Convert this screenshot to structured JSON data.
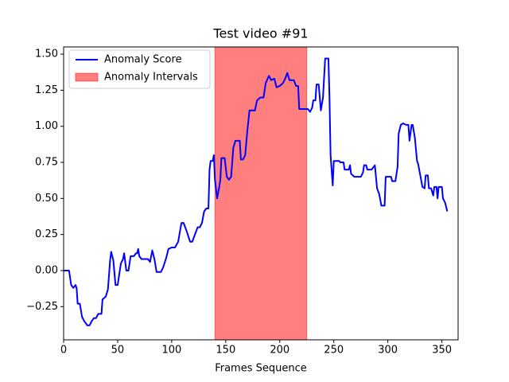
{
  "chart_data": {
    "type": "line",
    "title": "Test video #91",
    "x_label": "Frames Sequence",
    "x": [
      0,
      5,
      7,
      9,
      11,
      12,
      13,
      15,
      17,
      19,
      20,
      22,
      24,
      26,
      28,
      30,
      32,
      35,
      36,
      39,
      41,
      43,
      44,
      46,
      48,
      50,
      52,
      53,
      55,
      56,
      58,
      60,
      62,
      65,
      67,
      68,
      69,
      70,
      72,
      75,
      78,
      80,
      82,
      84,
      86,
      90,
      92,
      95,
      97,
      100,
      103,
      106,
      109,
      111,
      114,
      117,
      119,
      122,
      124,
      126,
      128,
      130,
      132,
      134,
      135,
      136,
      138,
      139,
      140,
      142,
      144,
      145,
      146,
      149,
      151,
      153,
      155,
      157,
      159,
      163,
      164,
      166,
      168,
      170,
      172,
      177,
      179,
      182,
      185,
      187,
      190,
      192,
      195,
      197,
      200,
      203,
      205,
      207,
      209,
      213,
      215,
      217,
      218,
      226,
      228,
      230,
      231,
      233,
      234,
      236,
      238,
      240,
      242,
      245,
      246,
      247,
      249,
      250,
      255,
      256,
      259,
      260,
      264,
      265,
      266,
      269,
      275,
      277,
      278,
      280,
      281,
      285,
      288,
      290,
      292,
      294,
      297,
      298,
      303,
      304,
      307,
      309,
      310,
      312,
      314,
      317,
      319,
      320,
      322,
      323,
      325,
      327,
      328,
      330,
      332,
      334,
      335,
      337,
      338,
      340,
      342,
      343,
      345,
      346,
      347,
      350,
      351,
      353,
      355
    ],
    "series": [
      {
        "name": "Anomaly Score",
        "color": "#0000ff",
        "values": [
          0,
          0,
          -0.1,
          -0.12,
          -0.1,
          -0.12,
          -0.23,
          -0.23,
          -0.32,
          -0.35,
          -0.36,
          -0.38,
          -0.38,
          -0.35,
          -0.33,
          -0.33,
          -0.3,
          -0.3,
          -0.2,
          -0.18,
          -0.13,
          0.07,
          0.13,
          0.07,
          -0.1,
          -0.1,
          0,
          0.05,
          0.08,
          0.12,
          0,
          0,
          0.1,
          0.1,
          0.12,
          0.12,
          0.15,
          0.1,
          0.08,
          0.08,
          0.08,
          0.06,
          0.14,
          0.08,
          -0.01,
          -0.01,
          0.02,
          0.09,
          0.15,
          0.16,
          0.16,
          0.2,
          0.33,
          0.33,
          0.27,
          0.2,
          0.2,
          0.26,
          0.3,
          0.3,
          0.33,
          0.41,
          0.43,
          0.43,
          0.7,
          0.76,
          0.76,
          0.8,
          0.63,
          0.5,
          0.58,
          0.63,
          0.78,
          0.78,
          0.65,
          0.63,
          0.65,
          0.85,
          0.9,
          0.9,
          0.77,
          0.77,
          0.8,
          0.97,
          1.11,
          1.11,
          1.18,
          1.2,
          1.2,
          1.3,
          1.35,
          1.32,
          1.33,
          1.27,
          1.28,
          1.3,
          1.33,
          1.37,
          1.32,
          1.32,
          1.28,
          1.28,
          1.12,
          1.12,
          1.1,
          1.13,
          1.18,
          1.18,
          1.29,
          1.29,
          1.11,
          1.2,
          1.47,
          1.47,
          1.2,
          0.8,
          0.59,
          0.76,
          0.76,
          0.75,
          0.75,
          0.7,
          0.7,
          0.73,
          0.67,
          0.65,
          0.65,
          0.68,
          0.73,
          0.73,
          0.7,
          0.7,
          0.73,
          0.57,
          0.53,
          0.45,
          0.45,
          0.65,
          0.65,
          0.62,
          0.62,
          0.72,
          0.95,
          1.01,
          1.02,
          1.01,
          1.01,
          0.9,
          1.01,
          1.01,
          0.92,
          0.76,
          0.74,
          0.66,
          0.58,
          0.57,
          0.66,
          0.66,
          0.57,
          0.57,
          0.52,
          0.58,
          0.58,
          0.5,
          0.58,
          0.58,
          0.5,
          0.47,
          0.41
        ]
      }
    ],
    "spans": [
      {
        "name": "Anomaly Intervals",
        "color": "#ff0000",
        "x": [
          140,
          225
        ]
      }
    ],
    "xlim": [
      0,
      365
    ],
    "ylim": [
      -0.48,
      1.55
    ],
    "xticks": [
      0,
      50,
      100,
      150,
      200,
      250,
      300,
      350
    ],
    "yticks": [
      {
        "value": -0.25,
        "label": "−0.25"
      },
      {
        "value": 0,
        "label": "0.00"
      },
      0.25,
      {
        "value": 0.5,
        "label": "0.50"
      },
      0.75,
      {
        "value": 1,
        "label": "1.00"
      },
      1.25,
      {
        "value": 1.5,
        "label": "1.50"
      }
    ],
    "legend": "upper left"
  }
}
